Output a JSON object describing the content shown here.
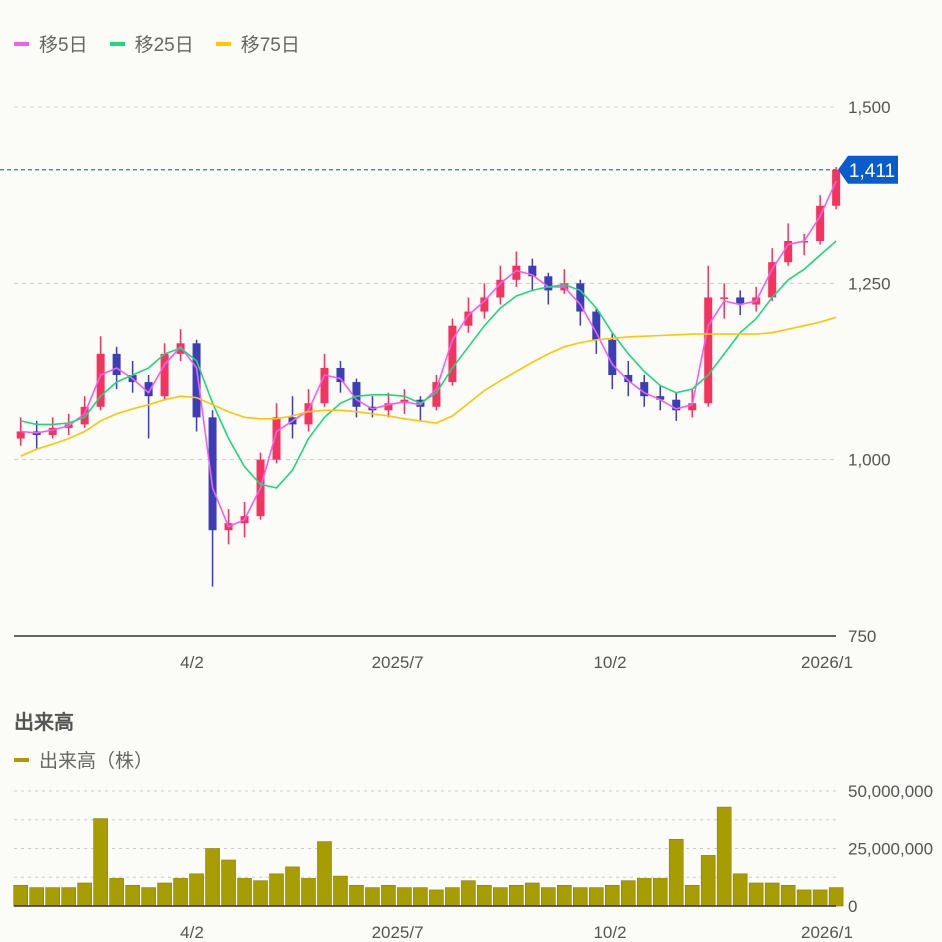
{
  "legend": [
    {
      "label": "移5日",
      "color": "#f060f0"
    },
    {
      "label": "移25日",
      "color": "#1ed97a"
    },
    {
      "label": "移75日",
      "color": "#ffc700"
    }
  ],
  "colors": {
    "up": "#f5335f",
    "down": "#3d3db8",
    "last_price_bg": "#0a5ccc",
    "volume": "#a89d00"
  },
  "price_chart": {
    "y_ticks": [
      "1,500",
      "1,250",
      "1,000",
      "750"
    ],
    "x_ticks": [
      "4/2",
      "2025/7",
      "10/2",
      "2026/1"
    ],
    "last_price_label": "1,411"
  },
  "volume_chart": {
    "title": "出来高",
    "legend": "出来高（株）",
    "y_ticks": [
      "50,000,000",
      "25,000,000",
      "0"
    ],
    "x_ticks": [
      "4/2",
      "2025/7",
      "10/2",
      "2026/1"
    ]
  },
  "chart_data": [
    {
      "type": "candlestick",
      "ylim": [
        750,
        1500
      ],
      "y_ticks": [
        1500,
        1250,
        1000,
        750
      ],
      "last_price": 1411,
      "grid": true,
      "legend_placement": "top-left",
      "dates": [
        "2025-01-17",
        "2025-01-24",
        "2025-01-31",
        "2025-02-07",
        "2025-02-14",
        "2025-02-21",
        "2025-02-28",
        "2025-03-07",
        "2025-03-14",
        "2025-03-21",
        "2025-03-28",
        "2025-04-04",
        "2025-04-11",
        "2025-04-18",
        "2025-04-25",
        "2025-05-02",
        "2025-05-09",
        "2025-05-16",
        "2025-05-23",
        "2025-05-30",
        "2025-06-06",
        "2025-06-13",
        "2025-06-20",
        "2025-06-27",
        "2025-07-04",
        "2025-07-11",
        "2025-07-18",
        "2025-07-25",
        "2025-08-01",
        "2025-08-08",
        "2025-08-15",
        "2025-08-22",
        "2025-08-29",
        "2025-09-05",
        "2025-09-12",
        "2025-09-19",
        "2025-09-26",
        "2025-10-03",
        "2025-10-10",
        "2025-10-17",
        "2025-10-24",
        "2025-10-31",
        "2025-11-07",
        "2025-11-14",
        "2025-11-21",
        "2025-11-28",
        "2025-12-05",
        "2025-12-12",
        "2025-12-19",
        "2025-12-26",
        "2026-01-02",
        "2026-01-09"
      ],
      "ohlc": [
        [
          1030,
          1060,
          1020,
          1040
        ],
        [
          1040,
          1055,
          1015,
          1035
        ],
        [
          1035,
          1060,
          1030,
          1045
        ],
        [
          1045,
          1065,
          1035,
          1050
        ],
        [
          1050,
          1090,
          1045,
          1075
        ],
        [
          1075,
          1175,
          1070,
          1150
        ],
        [
          1150,
          1160,
          1100,
          1120
        ],
        [
          1120,
          1140,
          1095,
          1110
        ],
        [
          1110,
          1120,
          1030,
          1090
        ],
        [
          1090,
          1165,
          1085,
          1150
        ],
        [
          1150,
          1185,
          1140,
          1165
        ],
        [
          1165,
          1170,
          1040,
          1060
        ],
        [
          1060,
          1070,
          820,
          900
        ],
        [
          900,
          930,
          880,
          910
        ],
        [
          910,
          940,
          890,
          920
        ],
        [
          920,
          1010,
          915,
          1000
        ],
        [
          1000,
          1080,
          995,
          1060
        ],
        [
          1060,
          1090,
          1030,
          1050
        ],
        [
          1050,
          1100,
          1040,
          1080
        ],
        [
          1080,
          1150,
          1075,
          1130
        ],
        [
          1130,
          1140,
          1095,
          1110
        ],
        [
          1110,
          1115,
          1060,
          1075
        ],
        [
          1075,
          1090,
          1060,
          1070
        ],
        [
          1070,
          1095,
          1060,
          1080
        ],
        [
          1080,
          1100,
          1065,
          1085
        ],
        [
          1085,
          1090,
          1055,
          1075
        ],
        [
          1075,
          1120,
          1070,
          1110
        ],
        [
          1110,
          1200,
          1105,
          1190
        ],
        [
          1190,
          1230,
          1180,
          1210
        ],
        [
          1210,
          1250,
          1200,
          1230
        ],
        [
          1230,
          1275,
          1220,
          1255
        ],
        [
          1255,
          1295,
          1245,
          1275
        ],
        [
          1275,
          1285,
          1240,
          1260
        ],
        [
          1260,
          1265,
          1220,
          1240
        ],
        [
          1240,
          1270,
          1235,
          1250
        ],
        [
          1250,
          1255,
          1190,
          1210
        ],
        [
          1210,
          1215,
          1150,
          1170
        ],
        [
          1170,
          1180,
          1100,
          1120
        ],
        [
          1120,
          1140,
          1090,
          1110
        ],
        [
          1110,
          1120,
          1075,
          1090
        ],
        [
          1090,
          1105,
          1070,
          1085
        ],
        [
          1085,
          1095,
          1055,
          1070
        ],
        [
          1070,
          1100,
          1060,
          1080
        ],
        [
          1080,
          1275,
          1075,
          1230
        ],
        [
          1230,
          1250,
          1200,
          1230
        ],
        [
          1230,
          1240,
          1205,
          1220
        ],
        [
          1220,
          1245,
          1210,
          1230
        ],
        [
          1230,
          1300,
          1225,
          1280
        ],
        [
          1280,
          1335,
          1275,
          1310
        ],
        [
          1310,
          1320,
          1290,
          1310
        ],
        [
          1310,
          1375,
          1305,
          1360
        ],
        [
          1360,
          1415,
          1355,
          1411
        ]
      ],
      "series": [
        {
          "name": "移5日",
          "values": [
            1040,
            1038,
            1042,
            1048,
            1065,
            1120,
            1130,
            1115,
            1095,
            1135,
            1160,
            1130,
            960,
            905,
            915,
            960,
            1040,
            1055,
            1070,
            1120,
            1115,
            1085,
            1072,
            1078,
            1082,
            1078,
            1100,
            1170,
            1205,
            1225,
            1250,
            1268,
            1262,
            1245,
            1245,
            1220,
            1180,
            1135,
            1112,
            1095,
            1085,
            1072,
            1078,
            1190,
            1225,
            1220,
            1225,
            1270,
            1305,
            1310,
            1345,
            1395
          ]
        },
        {
          "name": "移25日",
          "values": [
            1055,
            1050,
            1050,
            1052,
            1060,
            1090,
            1110,
            1120,
            1130,
            1150,
            1158,
            1140,
            1080,
            1030,
            990,
            965,
            960,
            985,
            1030,
            1060,
            1080,
            1090,
            1092,
            1092,
            1090,
            1080,
            1095,
            1130,
            1160,
            1190,
            1215,
            1232,
            1240,
            1245,
            1248,
            1240,
            1215,
            1180,
            1150,
            1125,
            1105,
            1095,
            1100,
            1120,
            1150,
            1180,
            1200,
            1230,
            1255,
            1270,
            1290,
            1310
          ]
        },
        {
          "name": "移75日",
          "values": [
            1005,
            1015,
            1022,
            1030,
            1040,
            1055,
            1065,
            1072,
            1078,
            1085,
            1090,
            1088,
            1078,
            1068,
            1060,
            1058,
            1058,
            1062,
            1068,
            1070,
            1070,
            1068,
            1065,
            1062,
            1058,
            1055,
            1052,
            1062,
            1080,
            1098,
            1112,
            1125,
            1138,
            1150,
            1160,
            1166,
            1170,
            1172,
            1174,
            1175,
            1176,
            1177,
            1178,
            1178,
            1178,
            1178,
            1178,
            1180,
            1185,
            1190,
            1195,
            1202
          ]
        }
      ]
    },
    {
      "type": "bar",
      "title": "出来高",
      "ylim": [
        0,
        50000000
      ],
      "y_ticks": [
        50000000,
        25000000,
        0
      ],
      "series": [
        {
          "name": "出来高（株）",
          "values": [
            9000000,
            8000000,
            8000000,
            8000000,
            10000000,
            38000000,
            12000000,
            9000000,
            8000000,
            10000000,
            12000000,
            14000000,
            25000000,
            20000000,
            12000000,
            11000000,
            14000000,
            17000000,
            12000000,
            28000000,
            13000000,
            9000000,
            8000000,
            9000000,
            8000000,
            8000000,
            7000000,
            8000000,
            11000000,
            9000000,
            8000000,
            9000000,
            10000000,
            8000000,
            9000000,
            8000000,
            8000000,
            9000000,
            11000000,
            12000000,
            12000000,
            29000000,
            9000000,
            22000000,
            43000000,
            14000000,
            10000000,
            10000000,
            9000000,
            7000000,
            7000000,
            8000000
          ]
        }
      ]
    }
  ]
}
